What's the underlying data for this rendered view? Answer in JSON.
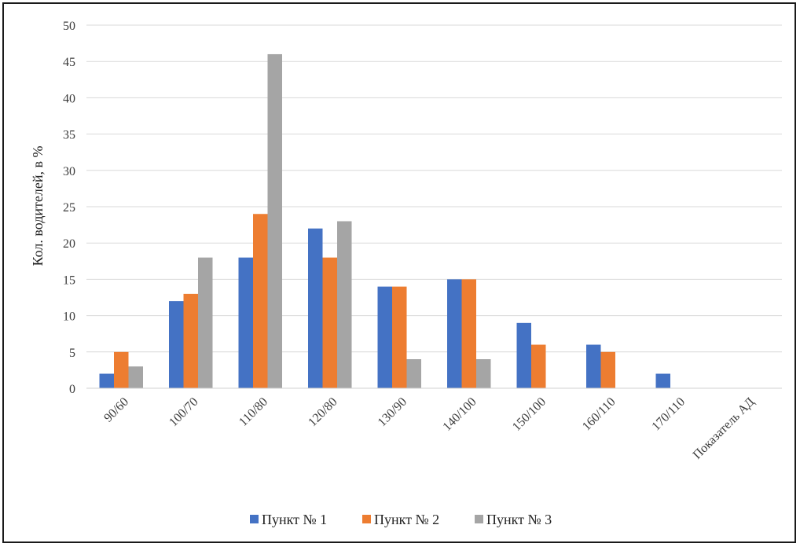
{
  "chart_data": {
    "type": "bar",
    "title": "",
    "ylabel": "Кол. водителей, в %",
    "xlabel": "",
    "categories": [
      "90/60",
      "100/70",
      "110/80",
      "120/80",
      "130/90",
      "140/100",
      "150/100",
      "160/110",
      "170/110",
      "Показатель АД"
    ],
    "ylim": [
      0,
      50
    ],
    "yticks": [
      0,
      5,
      10,
      15,
      20,
      25,
      30,
      35,
      40,
      45,
      50
    ],
    "grid": true,
    "legend_position": "bottom",
    "series": [
      {
        "name": "Пункт № 1",
        "color": "#4472c4",
        "values": [
          2,
          12,
          18,
          22,
          14,
          15,
          9,
          6,
          2,
          null
        ]
      },
      {
        "name": "Пункт № 2",
        "color": "#ed7d31",
        "values": [
          5,
          13,
          24,
          18,
          14,
          15,
          6,
          5,
          null,
          null
        ]
      },
      {
        "name": "Пункт № 3",
        "color": "#a5a5a5",
        "values": [
          3,
          18,
          46,
          23,
          4,
          4,
          null,
          null,
          null,
          null
        ]
      }
    ]
  }
}
